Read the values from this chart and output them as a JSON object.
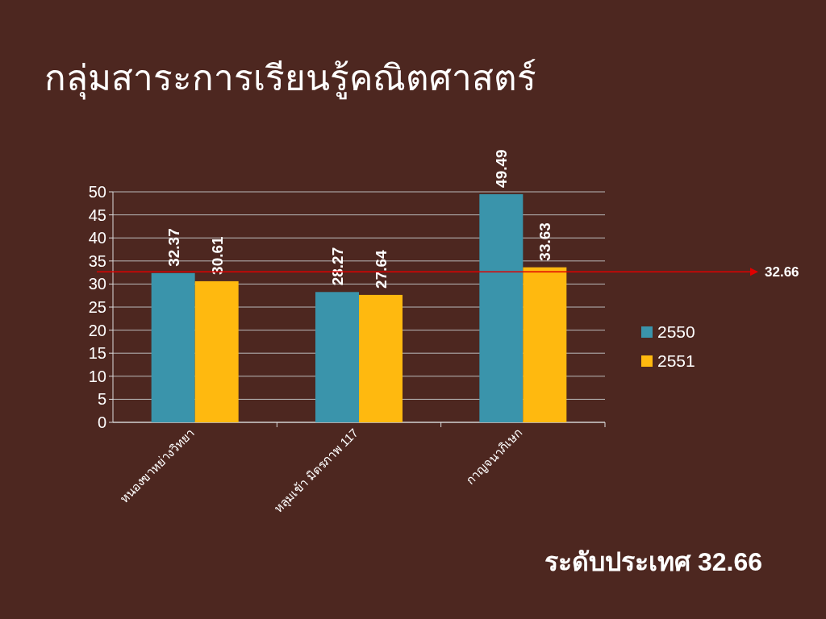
{
  "chart_data": {
    "type": "bar",
    "title": "กลุ่มสาระการเรียนรู้คณิตศาสตร์",
    "categories": [
      "หนองขาหย่างวิทยา",
      "หลุมเข้า มิตรภาพ 117",
      "กาญจนาภิเษก"
    ],
    "series": [
      {
        "name": "2550",
        "color": "#3a94ab",
        "values": [
          32.37,
          28.27,
          49.49
        ]
      },
      {
        "name": "2551",
        "color": "#ffb90f",
        "values": [
          30.61,
          27.64,
          33.63
        ]
      }
    ],
    "ylim": [
      0,
      50
    ],
    "yticks": [
      0,
      5,
      10,
      15,
      20,
      25,
      30,
      35,
      40,
      45,
      50
    ],
    "grid": "y",
    "legend": "right",
    "data_labels": true,
    "ref_lines": [
      {
        "axis": "y",
        "value": 32.66,
        "label": "32.66",
        "color": "#e00000"
      }
    ],
    "annotations": [
      "ระดับประเทศ 32.66"
    ]
  }
}
